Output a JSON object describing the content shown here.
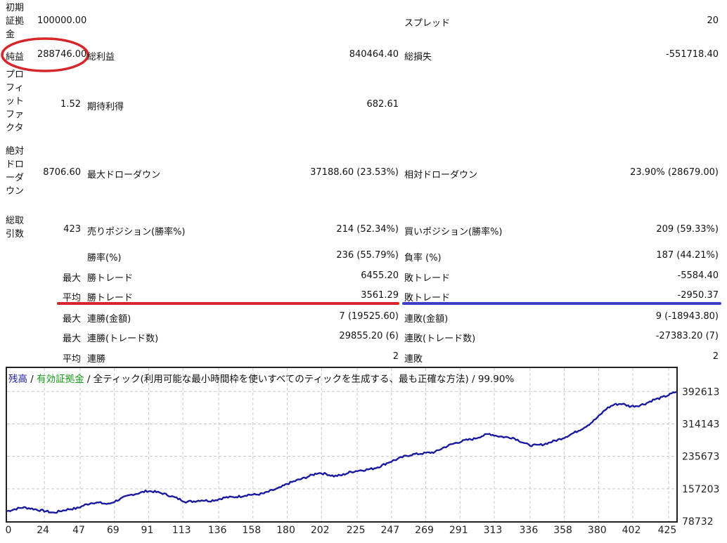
{
  "report": {
    "initial_deposit": {
      "label": "初期証拠金",
      "value": "100000.00"
    },
    "spread": {
      "label": "スプレッド",
      "value": "20"
    },
    "net_profit": {
      "label": "純益",
      "value": "288746.00"
    },
    "gross_profit": {
      "label": "総利益",
      "value": "840464.40"
    },
    "gross_loss": {
      "label": "総損失",
      "value": "-551718.40"
    },
    "profit_factor": {
      "label": "プロフィットファクタ",
      "value": "1.52"
    },
    "expected_payoff": {
      "label": "期待利得",
      "value": "682.61"
    },
    "absolute_drawdown": {
      "label": "絶対ドローダウン",
      "value": "8706.60"
    },
    "max_drawdown": {
      "label": "最大ドローダウン",
      "value": "37188.60 (23.53%)"
    },
    "relative_drawdown": {
      "label": "相対ドローダウン",
      "value": "23.90% (28679.00)"
    },
    "total_trades": {
      "label": "総取引数",
      "value": "423"
    },
    "short_positions": {
      "label": "売りポジション(勝率%)",
      "value": "214 (52.34%)"
    },
    "long_positions": {
      "label": "買いポジション(勝率%)",
      "value": "209 (59.33%)"
    },
    "win_rate": {
      "label": "勝率(%)",
      "value": "236 (55.79%)"
    },
    "loss_rate": {
      "label": "負率 (%)",
      "value": "187 (44.21%)"
    },
    "largest": {
      "prefix": "最大",
      "win_label": "勝トレード",
      "win_value": "6455.20",
      "loss_label": "敗トレード",
      "loss_value": "-5584.40"
    },
    "average": {
      "prefix": "平均",
      "win_label": "勝トレード",
      "win_value": "3561.29",
      "loss_label": "敗トレード",
      "loss_value": "-2950.37"
    },
    "max_consec_amount": {
      "prefix": "最大",
      "win_label": "連勝(金額)",
      "win_value": "7 (19525.60)",
      "loss_label": "連敗(金額)",
      "loss_value": "9 (-18943.80)"
    },
    "max_consec_trades": {
      "prefix": "最大",
      "win_label": "連勝(トレード数)",
      "win_value": "29855.20 (6)",
      "loss_label": "連敗(トレード数)",
      "loss_value": "-27383.20 (7)"
    },
    "avg_consec": {
      "prefix": "平均",
      "win_label": "連勝",
      "win_value": "2",
      "loss_label": "連敗",
      "loss_value": "2"
    }
  },
  "annotations": {
    "circle_color": "#d7262b",
    "red_underline_color": "#d7262b",
    "blue_underline_color": "#3b3ec8"
  },
  "legend": {
    "balance": "残高",
    "sep1": " / ",
    "equity": "有効証拠金",
    "sep2": " / ",
    "description": "全ティック(利用可能な最小時間枠を使いすべてのティックを生成する、最も正確な方法) / 99.90%",
    "balance_color": "#1a1aa0",
    "equity_color": "#1a9a1a"
  },
  "chart_data": {
    "type": "line",
    "title": "",
    "xlabel": "",
    "ylabel": "",
    "x_ticks": [
      0,
      24,
      47,
      69,
      91,
      113,
      136,
      158,
      180,
      202,
      225,
      247,
      269,
      291,
      313,
      336,
      358,
      380,
      402,
      425
    ],
    "y_ticks": [
      78732,
      157203,
      235673,
      314143,
      392613
    ],
    "xlim": [
      0,
      430
    ],
    "ylim": [
      78732,
      405000
    ],
    "grid": true,
    "line_color": "#1a1aa0",
    "series": [
      {
        "name": "残高",
        "points": [
          [
            0,
            103000
          ],
          [
            5,
            108000
          ],
          [
            10,
            112000
          ],
          [
            15,
            110000
          ],
          [
            20,
            106000
          ],
          [
            25,
            103000
          ],
          [
            30,
            99000
          ],
          [
            35,
            104000
          ],
          [
            40,
            108000
          ],
          [
            45,
            110000
          ],
          [
            50,
            118000
          ],
          [
            55,
            124000
          ],
          [
            60,
            123000
          ],
          [
            65,
            120000
          ],
          [
            70,
            128000
          ],
          [
            75,
            136000
          ],
          [
            80,
            143000
          ],
          [
            85,
            147000
          ],
          [
            90,
            152000
          ],
          [
            95,
            150000
          ],
          [
            100,
            146000
          ],
          [
            105,
            140000
          ],
          [
            110,
            133000
          ],
          [
            115,
            126000
          ],
          [
            120,
            127000
          ],
          [
            125,
            130000
          ],
          [
            130,
            128000
          ],
          [
            135,
            131000
          ],
          [
            140,
            136000
          ],
          [
            145,
            137000
          ],
          [
            150,
            139000
          ],
          [
            155,
            143000
          ],
          [
            160,
            143000
          ],
          [
            165,
            146000
          ],
          [
            170,
            153000
          ],
          [
            175,
            159000
          ],
          [
            180,
            169000
          ],
          [
            185,
            176000
          ],
          [
            190,
            182000
          ],
          [
            195,
            189000
          ],
          [
            200,
            196000
          ],
          [
            205,
            193000
          ],
          [
            210,
            188000
          ],
          [
            215,
            190000
          ],
          [
            220,
            197000
          ],
          [
            225,
            201000
          ],
          [
            230,
            203000
          ],
          [
            235,
            206000
          ],
          [
            240,
            212000
          ],
          [
            245,
            221000
          ],
          [
            250,
            228000
          ],
          [
            255,
            235000
          ],
          [
            260,
            240000
          ],
          [
            265,
            242000
          ],
          [
            270,
            244000
          ],
          [
            275,
            246000
          ],
          [
            280,
            256000
          ],
          [
            285,
            264000
          ],
          [
            290,
            270000
          ],
          [
            295,
            275000
          ],
          [
            300,
            278000
          ],
          [
            305,
            285000
          ],
          [
            310,
            290000
          ],
          [
            315,
            285000
          ],
          [
            320,
            282000
          ],
          [
            325,
            281000
          ],
          [
            330,
            272000
          ],
          [
            335,
            263000
          ],
          [
            340,
            262000
          ],
          [
            345,
            265000
          ],
          [
            350,
            271000
          ],
          [
            355,
            277000
          ],
          [
            360,
            285000
          ],
          [
            365,
            294000
          ],
          [
            370,
            304000
          ],
          [
            375,
            316000
          ],
          [
            380,
            332000
          ],
          [
            385,
            351000
          ],
          [
            390,
            361000
          ],
          [
            395,
            363000
          ],
          [
            400,
            357000
          ],
          [
            405,
            358000
          ],
          [
            410,
            363000
          ],
          [
            415,
            372000
          ],
          [
            420,
            377000
          ],
          [
            425,
            384000
          ],
          [
            430,
            392000
          ]
        ]
      }
    ]
  }
}
